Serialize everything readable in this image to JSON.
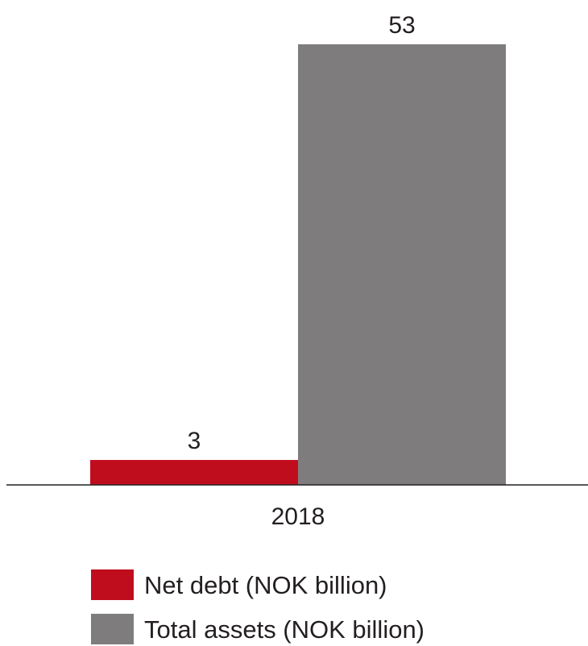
{
  "chart_data": {
    "type": "bar",
    "categories": [
      "2018"
    ],
    "series": [
      {
        "name": "Net debt (NOK billion)",
        "values": [
          3
        ],
        "color": "#c00d1e"
      },
      {
        "name": "Total assets (NOK billion)",
        "values": [
          53
        ],
        "color": "#7f7c7d"
      }
    ],
    "title": "",
    "xlabel": "",
    "ylabel": "",
    "ylim": [
      0,
      53
    ],
    "grid": false,
    "legend": "bottom"
  }
}
